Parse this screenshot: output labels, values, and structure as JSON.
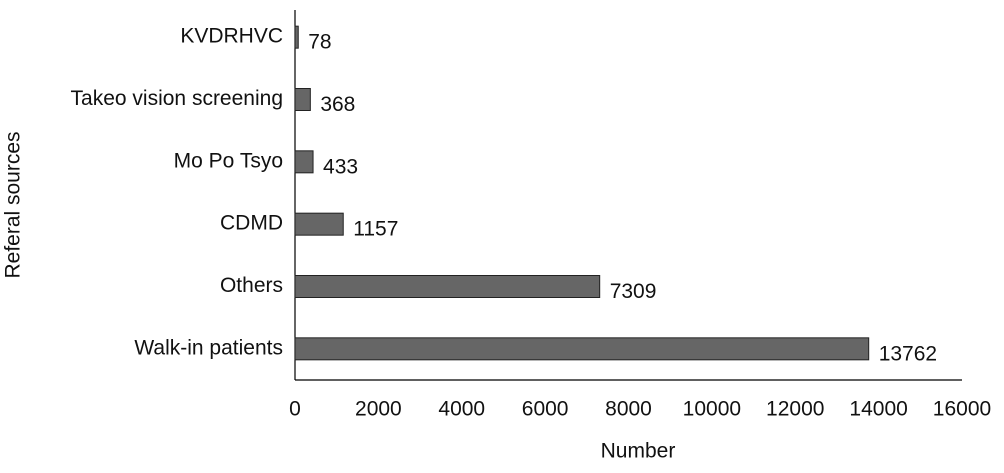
{
  "chart_data": {
    "type": "barh",
    "categories": [
      "KVDRHVC",
      "Takeo vision screening",
      "Mo Po Tsyo",
      "CDMD",
      "Others",
      "Walk-in patients"
    ],
    "values": [
      78,
      368,
      433,
      1157,
      7309,
      13762
    ],
    "color": "#666666",
    "xlim": [
      0,
      16000
    ],
    "xticks": [
      0,
      2000,
      4000,
      6000,
      8000,
      10000,
      12000,
      14000,
      16000
    ],
    "xlabel": "Number",
    "ylabel": "Referal sources",
    "grid": false
  }
}
